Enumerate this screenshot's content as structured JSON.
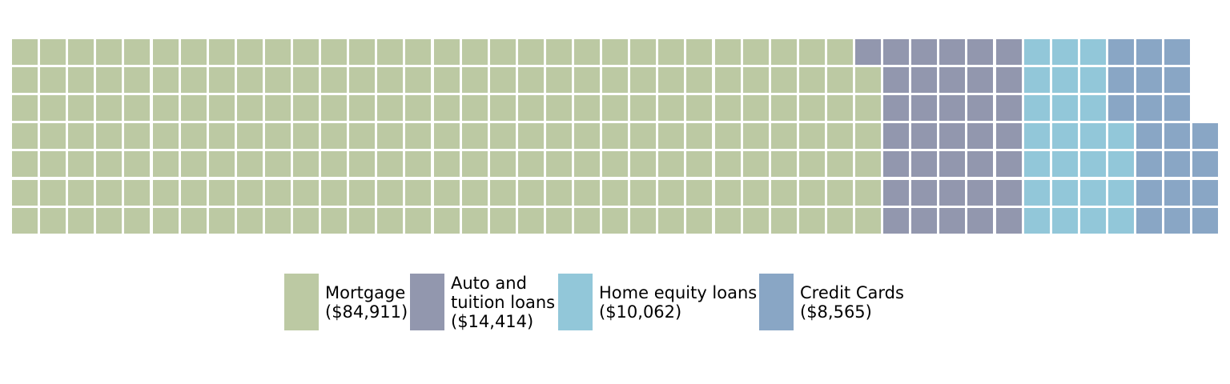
{
  "page": {
    "background_color": "#ffffff"
  },
  "chart_data": {
    "type": "waffle",
    "title": "",
    "grid": {
      "rows": 7,
      "columns": 43,
      "total_cells": 298,
      "fill_order": "column-major, bottom-to-top, left-to-right",
      "gap_color": "#ffffff"
    },
    "series": [
      {
        "name": "Mortgage",
        "value": 84911,
        "value_label": "($84,911)",
        "cells": 216,
        "color": "#bcc9a3",
        "legend_lines": [
          "Mortgage",
          "($84,911)"
        ]
      },
      {
        "name": "Auto and tuition loans",
        "value": 14414,
        "value_label": "($14,414)",
        "cells": 36,
        "color": "#9297ae",
        "legend_lines": [
          "Auto and",
          "tuition loans",
          "($14,414)"
        ]
      },
      {
        "name": "Home equity loans",
        "value": 10062,
        "value_label": "($10,062)",
        "cells": 25,
        "color": "#92c7d9",
        "legend_lines": [
          "Home equity loans",
          "($10,062)"
        ]
      },
      {
        "name": "Credit Cards",
        "value": 8565,
        "value_label": "($8,565)",
        "cells": 21,
        "color": "#89a6c5",
        "legend_lines": [
          "Credit Cards",
          "($8,565)"
        ]
      }
    ],
    "legend_position": "bottom",
    "text_color": "#000000"
  }
}
